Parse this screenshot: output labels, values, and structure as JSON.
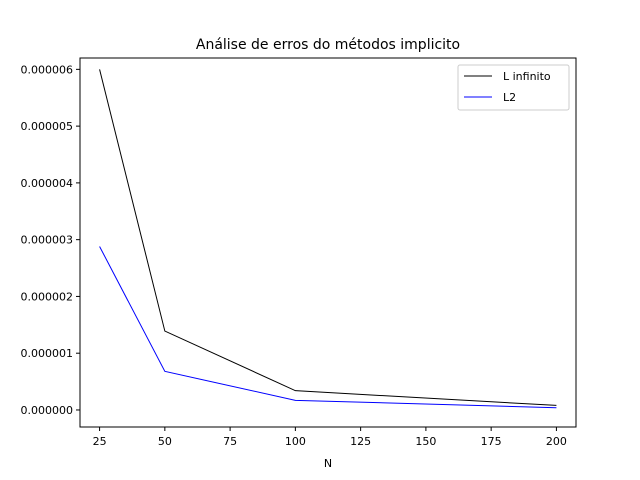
{
  "chart_data": {
    "type": "line",
    "title": "Análise de erros do métodos implicito",
    "xlabel": "N",
    "ylabel": "",
    "x": [
      25,
      50,
      100,
      200
    ],
    "xlim": [
      17.5,
      207.5
    ],
    "ylim": [
      -3e-07,
      6.2e-06
    ],
    "xticks": [
      25,
      50,
      75,
      100,
      125,
      150,
      175,
      200
    ],
    "yticks": [
      0,
      1e-06,
      2e-06,
      3e-06,
      4e-06,
      5e-06,
      6e-06
    ],
    "ytick_labels": [
      "0.000000",
      "0.000001",
      "0.000002",
      "0.000003",
      "0.000004",
      "0.000005",
      "0.000006"
    ],
    "grid": false,
    "legend_position": "top-right",
    "series": [
      {
        "name": "L infinito",
        "color": "#000000",
        "values": [
          6e-06,
          1.39e-06,
          3.4e-07,
          8e-08
        ]
      },
      {
        "name": "L2",
        "color": "#0000ff",
        "values": [
          2.88e-06,
          6.8e-07,
          1.7e-07,
          4e-08
        ]
      }
    ]
  }
}
